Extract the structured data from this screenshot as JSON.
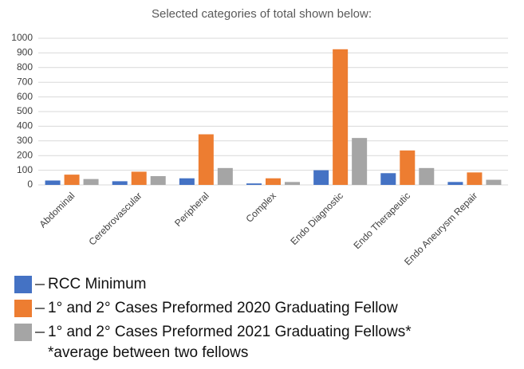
{
  "chart_data": {
    "type": "bar",
    "title": "Selected categories of total shown below:",
    "categories": [
      "Abdominal",
      "Cerebrovascular",
      "Peripheral",
      "Complex",
      "Endo Diagnostic",
      "Endo Therapeutic",
      "Endo Aneurysm Repair"
    ],
    "series": [
      {
        "name": "RCC Minimum",
        "color": "#4472c4",
        "values": [
          30,
          25,
          45,
          10,
          100,
          80,
          20
        ]
      },
      {
        "name": "1° and 2° Cases Preformed 2020 Graduating Fellow",
        "color": "#ed7d31",
        "values": [
          70,
          90,
          345,
          45,
          925,
          235,
          85
        ]
      },
      {
        "name": "1° and 2° Cases Preformed 2021 Graduating Fellows*",
        "color": "#a5a5a5",
        "values": [
          40,
          60,
          115,
          20,
          320,
          115,
          35
        ]
      }
    ],
    "legend_note": "*average between two fellows",
    "ylim": [
      0,
      1000
    ],
    "yticks": [
      0,
      100,
      200,
      300,
      400,
      500,
      600,
      700,
      800,
      900,
      1000
    ],
    "grid": true
  }
}
